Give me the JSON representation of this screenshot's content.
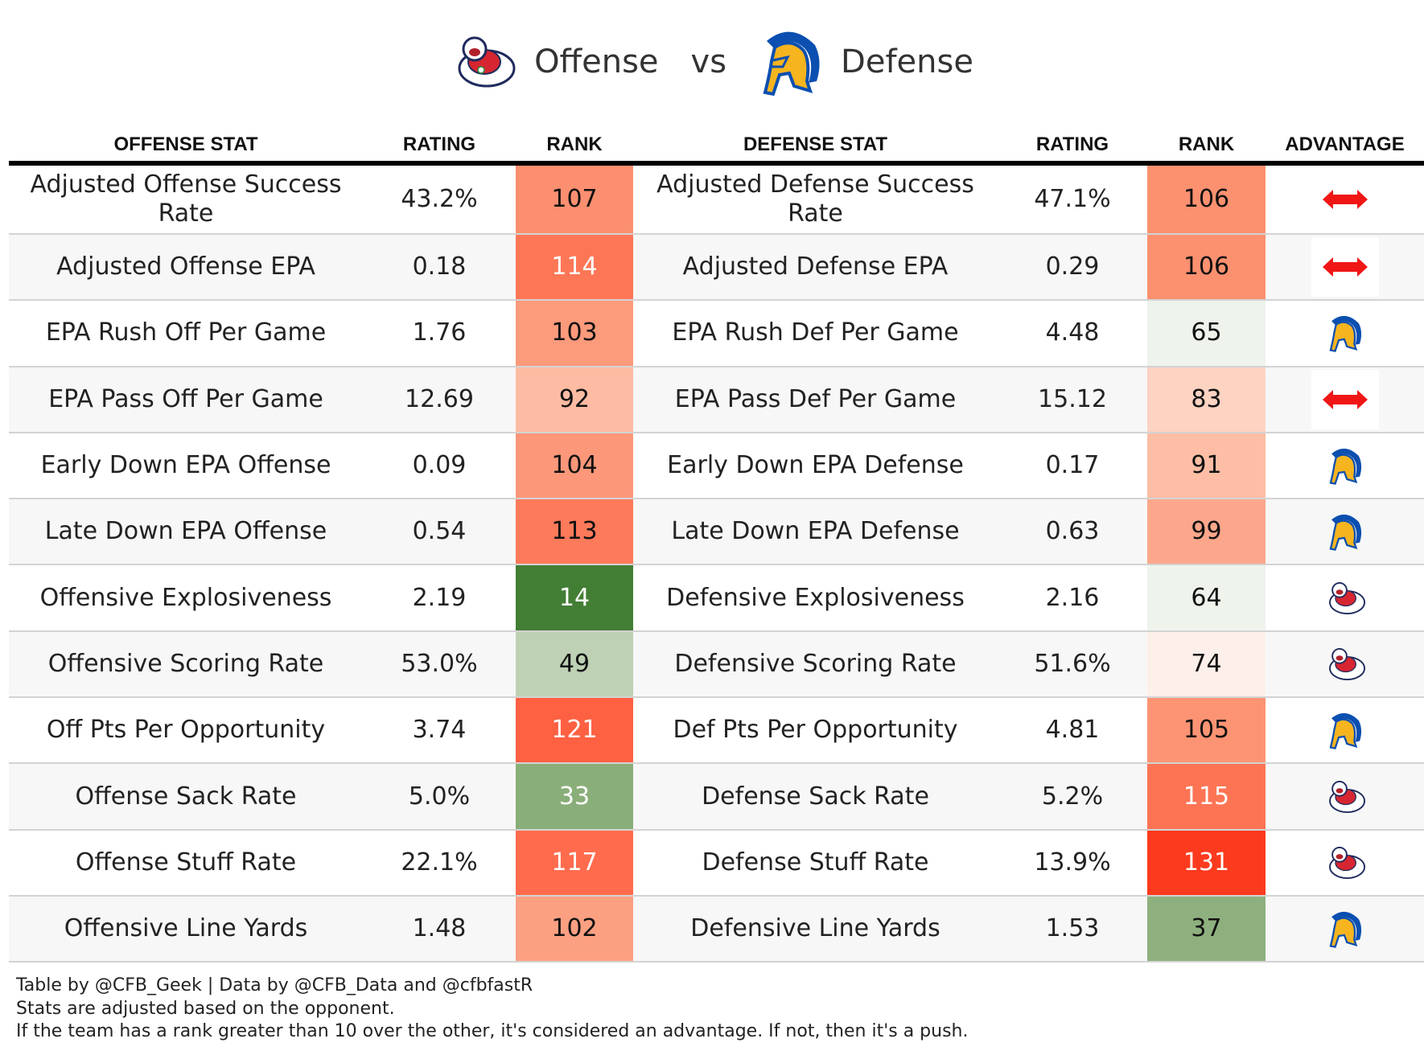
{
  "header": {
    "offense_label": "Offense",
    "vs_label": "vs",
    "defense_label": "Defense",
    "offense_logo": "fresno-state-bulldog-logo",
    "defense_logo": "san-jose-state-spartan-logo"
  },
  "columns": [
    "OFFENSE STAT",
    "RATING",
    "RANK",
    "DEFENSE STAT",
    "RATING",
    "RANK",
    "ADVANTAGE"
  ],
  "rows": [
    {
      "off_stat": "Adjusted Offense Success Rate",
      "off_rating": "43.2%",
      "off_rank": "107",
      "off_color": "#fc8f70",
      "off_text": "#111",
      "def_stat": "Adjusted Defense Success Rate",
      "def_rating": "47.1%",
      "def_rank": "106",
      "def_color": "#fc9170",
      "def_text": "#111",
      "advantage": "push"
    },
    {
      "off_stat": "Adjusted Offense EPA",
      "off_rating": "0.18",
      "off_rank": "114",
      "off_color": "#fd7756",
      "off_text": "#fff",
      "def_stat": "Adjusted Defense EPA",
      "def_rating": "0.29",
      "def_rank": "106",
      "def_color": "#fc9170",
      "def_text": "#111",
      "advantage": "push"
    },
    {
      "off_stat": "EPA Rush Off Per Game",
      "off_rating": "1.76",
      "off_rank": "103",
      "off_color": "#fc9a7c",
      "off_text": "#111",
      "def_stat": "EPA Rush Def Per Game",
      "def_rating": "4.48",
      "def_rank": "65",
      "def_color": "#eef3ec",
      "def_text": "#111",
      "advantage": "defense"
    },
    {
      "off_stat": "EPA Pass Off Per Game",
      "off_rating": "12.69",
      "off_rank": "92",
      "off_color": "#fdbba3",
      "off_text": "#111",
      "def_stat": "EPA Pass Def Per Game",
      "def_rating": "15.12",
      "def_rank": "83",
      "def_color": "#fdd3c2",
      "def_text": "#111",
      "advantage": "push"
    },
    {
      "off_stat": "Early Down EPA Offense",
      "off_rating": "0.09",
      "off_rank": "104",
      "off_color": "#fc977a",
      "off_text": "#111",
      "def_stat": "Early Down EPA Defense",
      "def_rating": "0.17",
      "def_rank": "91",
      "def_color": "#fdbea5",
      "def_text": "#111",
      "advantage": "defense"
    },
    {
      "off_stat": "Late Down EPA Offense",
      "off_rating": "0.54",
      "off_rank": "113",
      "off_color": "#fd7a5a",
      "off_text": "#111",
      "def_stat": "Late Down EPA Defense",
      "def_rating": "0.63",
      "def_rank": "99",
      "def_color": "#fca78b",
      "def_text": "#111",
      "advantage": "defense"
    },
    {
      "off_stat": "Offensive Explosiveness",
      "off_rating": "2.19",
      "off_rank": "14",
      "off_color": "#437e35",
      "off_text": "#fff",
      "def_stat": "Defensive Explosiveness",
      "def_rating": "2.16",
      "def_rank": "64",
      "def_color": "#eef3ec",
      "def_text": "#111",
      "advantage": "offense"
    },
    {
      "off_stat": "Offensive Scoring Rate",
      "off_rating": "53.0%",
      "off_rank": "49",
      "off_color": "#bed1b4",
      "off_text": "#111",
      "def_stat": "Defensive Scoring Rate",
      "def_rating": "51.6%",
      "def_rank": "74",
      "def_color": "#fdefe9",
      "def_text": "#111",
      "advantage": "offense"
    },
    {
      "off_stat": "Off Pts Per Opportunity",
      "off_rating": "3.74",
      "off_rank": "121",
      "off_color": "#fe6042",
      "off_text": "#fff",
      "def_stat": "Def Pts Per Opportunity",
      "def_rating": "4.81",
      "def_rank": "105",
      "def_color": "#fc9474",
      "def_text": "#111",
      "advantage": "defense"
    },
    {
      "off_stat": "Offense Sack Rate",
      "off_rating": "5.0%",
      "off_rank": "33",
      "off_color": "#8aae79",
      "off_text": "#fff",
      "def_stat": "Defense Sack Rate",
      "def_rating": "5.2%",
      "def_rank": "115",
      "def_color": "#fd7454",
      "def_text": "#fff",
      "advantage": "offense"
    },
    {
      "off_stat": "Offense Stuff Rate",
      "off_rating": "22.1%",
      "off_rank": "117",
      "off_color": "#fe6c4d",
      "off_text": "#fff",
      "def_stat": "Defense Stuff Rate",
      "def_rating": "13.9%",
      "def_rank": "131",
      "def_color": "#fc3a1e",
      "def_text": "#fff",
      "advantage": "offense"
    },
    {
      "off_stat": "Offensive Line Yards",
      "off_rating": "1.48",
      "off_rank": "102",
      "off_color": "#fca082",
      "off_text": "#111",
      "def_stat": "Defensive Line Yards",
      "def_rating": "1.53",
      "def_rank": "37",
      "def_color": "#8eb07e",
      "def_text": "#111",
      "advantage": "defense"
    }
  ],
  "footer": [
    "Table by @CFB_Geek | Data by @CFB_Data and @cfbfastR",
    "Stats are adjusted based on the opponent.",
    "If the team has a rank greater than 10 over the other, it's considered an advantage. If not, then it's a push."
  ]
}
